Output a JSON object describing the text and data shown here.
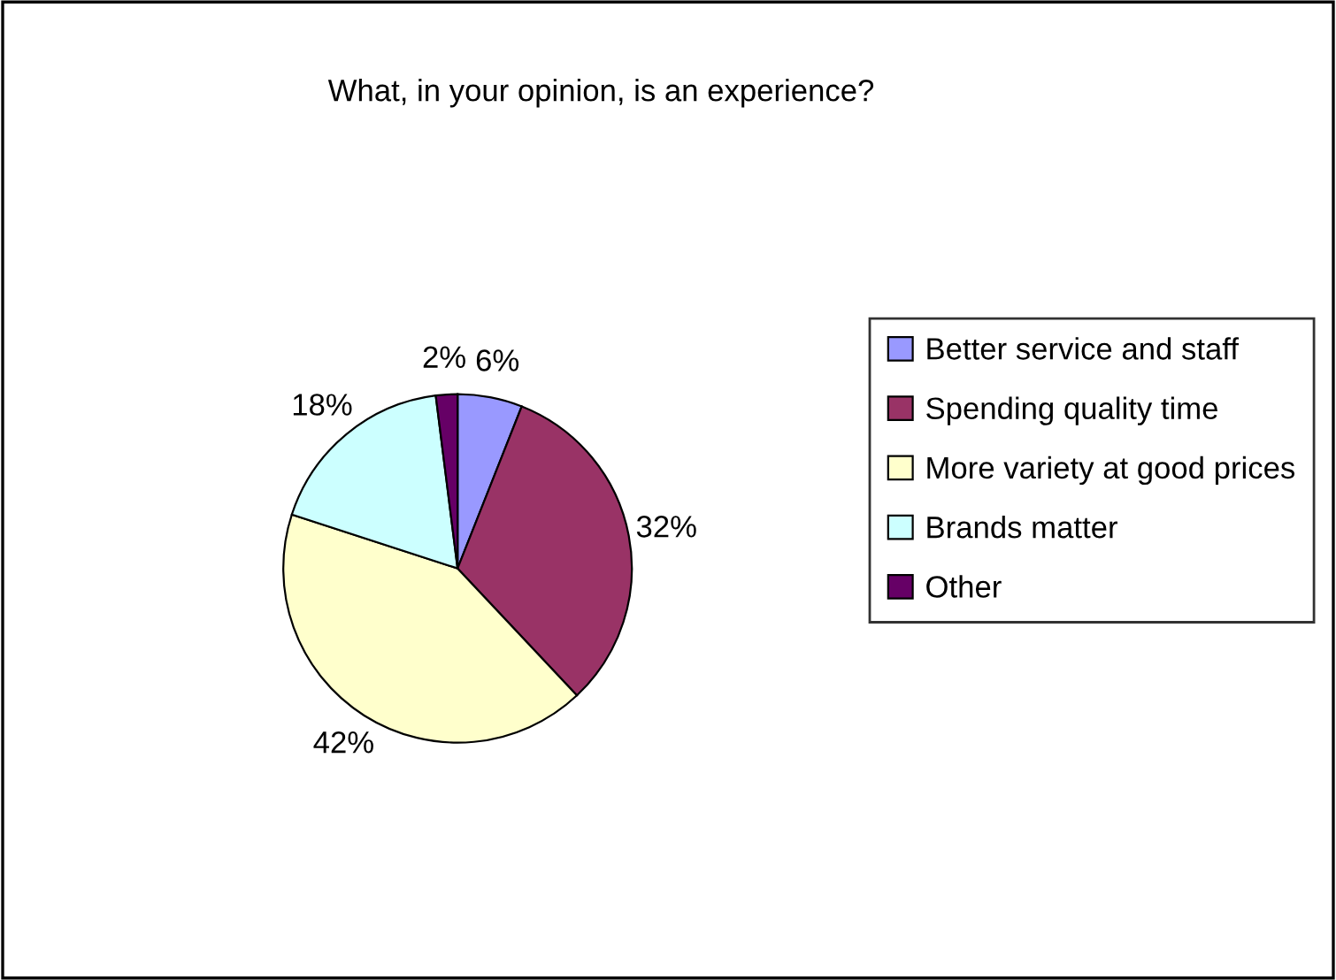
{
  "chart_data": {
    "type": "pie",
    "title": "What, in your opinion, is an experience?",
    "categories": [
      "Better service and staff",
      "Spending quality time",
      "More variety at good prices",
      "Brands matter",
      "Other"
    ],
    "values": [
      6,
      32,
      42,
      18,
      2
    ],
    "colors": [
      "#9999ff",
      "#993366",
      "#ffffcc",
      "#ccffff",
      "#660066"
    ],
    "value_labels": [
      "6%",
      "32%",
      "42%",
      "18%",
      "2%"
    ],
    "legend": "right"
  }
}
